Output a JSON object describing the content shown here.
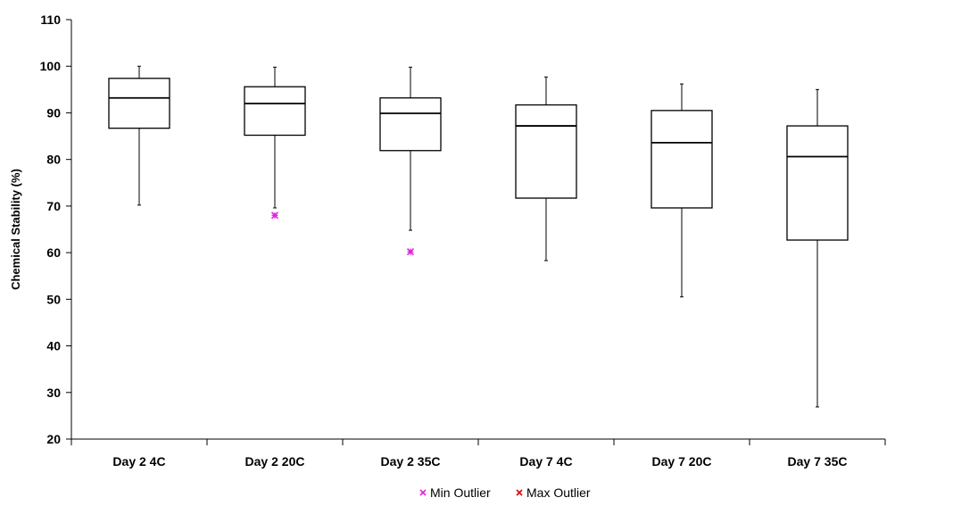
{
  "chart_data": {
    "type": "box",
    "title": "",
    "xlabel": "",
    "ylabel": "Chemical Stability (%)",
    "ylim": [
      20,
      110
    ],
    "yticks": [
      20,
      30,
      40,
      50,
      60,
      70,
      80,
      90,
      100,
      110
    ],
    "grid": false,
    "legend_position": "bottom",
    "categories": [
      "Day 2 4C",
      "Day 2 20C",
      "Day 2 35C",
      "Day 7 4C",
      "Day 7 20C",
      "Day 7 35C"
    ],
    "boxes": [
      {
        "min": 70.2,
        "q1": 86.7,
        "median": 93.2,
        "q3": 97.4,
        "max": 100.0,
        "min_outliers": [],
        "max_outliers": []
      },
      {
        "min": 69.6,
        "q1": 85.2,
        "median": 92.0,
        "q3": 95.6,
        "max": 99.8,
        "min_outliers": [
          68.0
        ],
        "max_outliers": []
      },
      {
        "min": 64.8,
        "q1": 81.9,
        "median": 89.9,
        "q3": 93.2,
        "max": 99.8,
        "min_outliers": [
          60.2
        ],
        "max_outliers": []
      },
      {
        "min": 58.3,
        "q1": 71.7,
        "median": 87.2,
        "q3": 91.7,
        "max": 97.7,
        "min_outliers": [],
        "max_outliers": []
      },
      {
        "min": 50.5,
        "q1": 69.6,
        "median": 83.6,
        "q3": 90.5,
        "max": 96.2,
        "min_outliers": [],
        "max_outliers": []
      },
      {
        "min": 26.9,
        "q1": 62.7,
        "median": 80.6,
        "q3": 87.2,
        "max": 95.0,
        "min_outliers": [],
        "max_outliers": []
      }
    ],
    "legend": [
      {
        "name": "Min Outlier",
        "color": "#e020e0",
        "marker": "x"
      },
      {
        "name": "Max Outlier",
        "color": "#e00000",
        "marker": "x"
      }
    ]
  }
}
